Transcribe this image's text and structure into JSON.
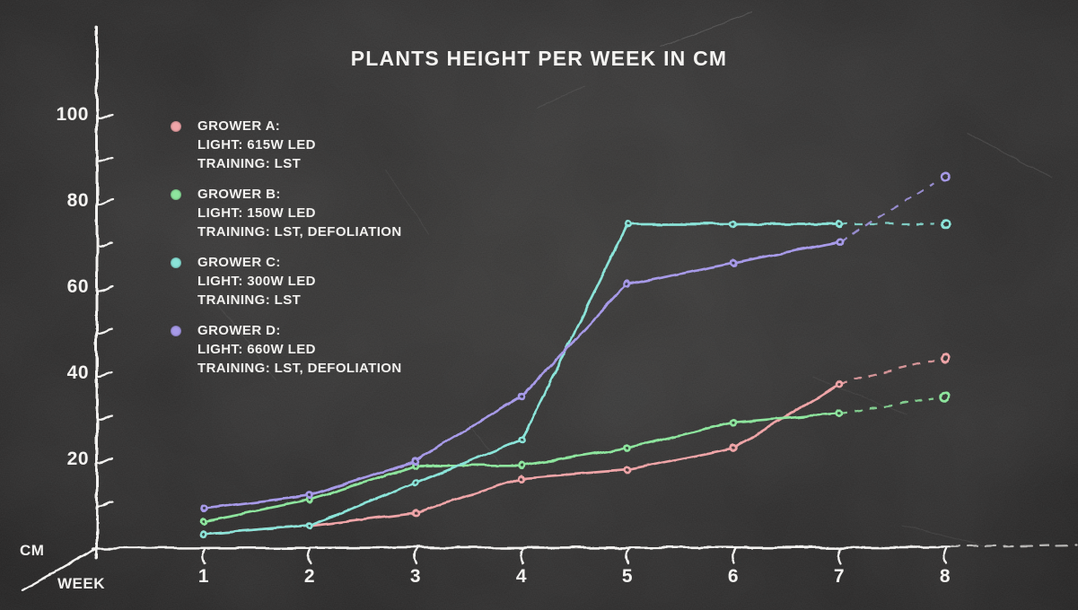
{
  "title": "PLANTS HEIGHT PER WEEK IN CM",
  "legend": {
    "entries": [
      {
        "title": "GROWER A:",
        "line1": "LIGHT: 615W LED",
        "line2": "TRAINING: LST",
        "color": "#efa5a8"
      },
      {
        "title": "GROWER B:",
        "line1": "LIGHT: 150W LED",
        "line2": "TRAINING: LST, DEFOLIATION",
        "color": "#8ee59e"
      },
      {
        "title": "GROWER C:",
        "line1": "LIGHT: 300W LED",
        "line2": "TRAINING: LST",
        "color": "#8be4d9"
      },
      {
        "title": "GROWER D:",
        "line1": "LIGHT: 660W LED",
        "line2": "TRAINING: LST, DEFOLIATION",
        "color": "#a79ae8"
      }
    ]
  },
  "chart_data": {
    "type": "line",
    "title": "PLANTS HEIGHT PER WEEK IN CM",
    "xlabel": "WEEK",
    "ylabel": "CM",
    "x": [
      1,
      2,
      3,
      4,
      5,
      6,
      7,
      8
    ],
    "x_tick_labels": [
      "1",
      "2",
      "3",
      "4",
      "5",
      "6",
      "7",
      "8"
    ],
    "y_ticks": [
      10,
      20,
      30,
      40,
      50,
      60,
      70,
      80,
      90,
      100
    ],
    "y_labeled_ticks": [
      20,
      40,
      60,
      80,
      100
    ],
    "ylim": [
      0,
      105
    ],
    "grid": false,
    "legend_position": "upper-left",
    "last_segment_style": "dashed",
    "marker": "open-circle",
    "series": [
      {
        "name": "GROWER A",
        "light": "615W LED",
        "training": "LST",
        "color": "#efa5a8",
        "values": [
          3,
          5,
          8,
          16,
          18,
          23,
          38,
          44
        ]
      },
      {
        "name": "GROWER B",
        "light": "150W LED",
        "training": "LST, DEFOLIATION",
        "color": "#8ee59e",
        "values": [
          6,
          11,
          19,
          19,
          23,
          29,
          31,
          35
        ]
      },
      {
        "name": "GROWER C",
        "light": "300W LED",
        "training": "LST",
        "color": "#8be4d9",
        "values": [
          3,
          5,
          15,
          25,
          75,
          75,
          75,
          75
        ]
      },
      {
        "name": "GROWER D",
        "light": "660W LED",
        "training": "LST, DEFOLIATION",
        "color": "#a79ae8",
        "values": [
          9,
          12,
          20,
          35,
          61,
          66,
          71,
          86
        ]
      }
    ]
  }
}
